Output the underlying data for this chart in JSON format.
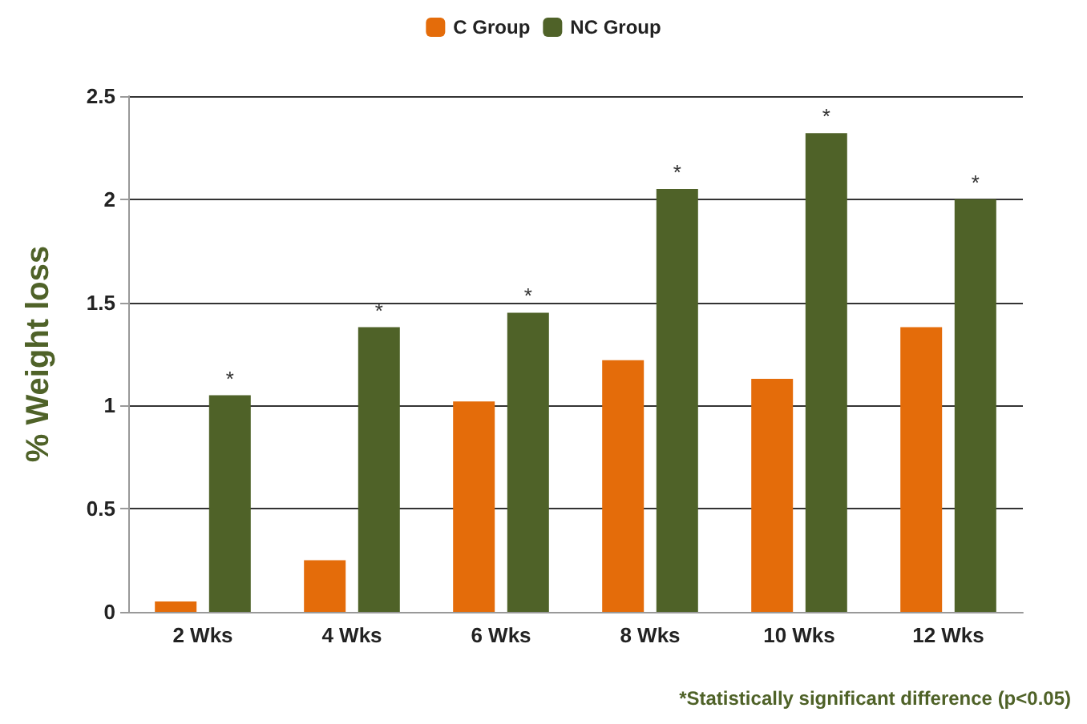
{
  "chart_data": {
    "type": "bar",
    "ylabel": "% Weight loss",
    "categories": [
      "2 Wks",
      "4 Wks",
      "6 Wks",
      "8 Wks",
      "10 Wks",
      "12 Wks"
    ],
    "series": [
      {
        "name": "C Group",
        "color": "#e46c0a",
        "values": [
          0.05,
          0.25,
          1.02,
          1.22,
          1.13,
          1.38
        ]
      },
      {
        "name": "NC Group",
        "color": "#4f6228",
        "values": [
          1.05,
          1.38,
          1.45,
          2.05,
          2.32,
          2.0
        ]
      }
    ],
    "ylim": [
      0,
      2.5
    ],
    "yticks": [
      0,
      0.5,
      1,
      1.5,
      2,
      2.5
    ],
    "grid": "y",
    "legend": "top",
    "annotations": [
      {
        "text": "*",
        "x": "2 Wks",
        "y": 1.05
      },
      {
        "text": "*",
        "x": "4 Wks",
        "y": 1.38
      },
      {
        "text": "*",
        "x": "6 Wks",
        "y": 1.45
      },
      {
        "text": "*",
        "x": "8 Wks",
        "y": 2.05
      },
      {
        "text": "*",
        "x": "10 Wks",
        "y": 2.32
      },
      {
        "text": "*",
        "x": "12 Wks",
        "y": 2.0
      },
      "*Statistically significant difference (p<0.05)"
    ]
  }
}
